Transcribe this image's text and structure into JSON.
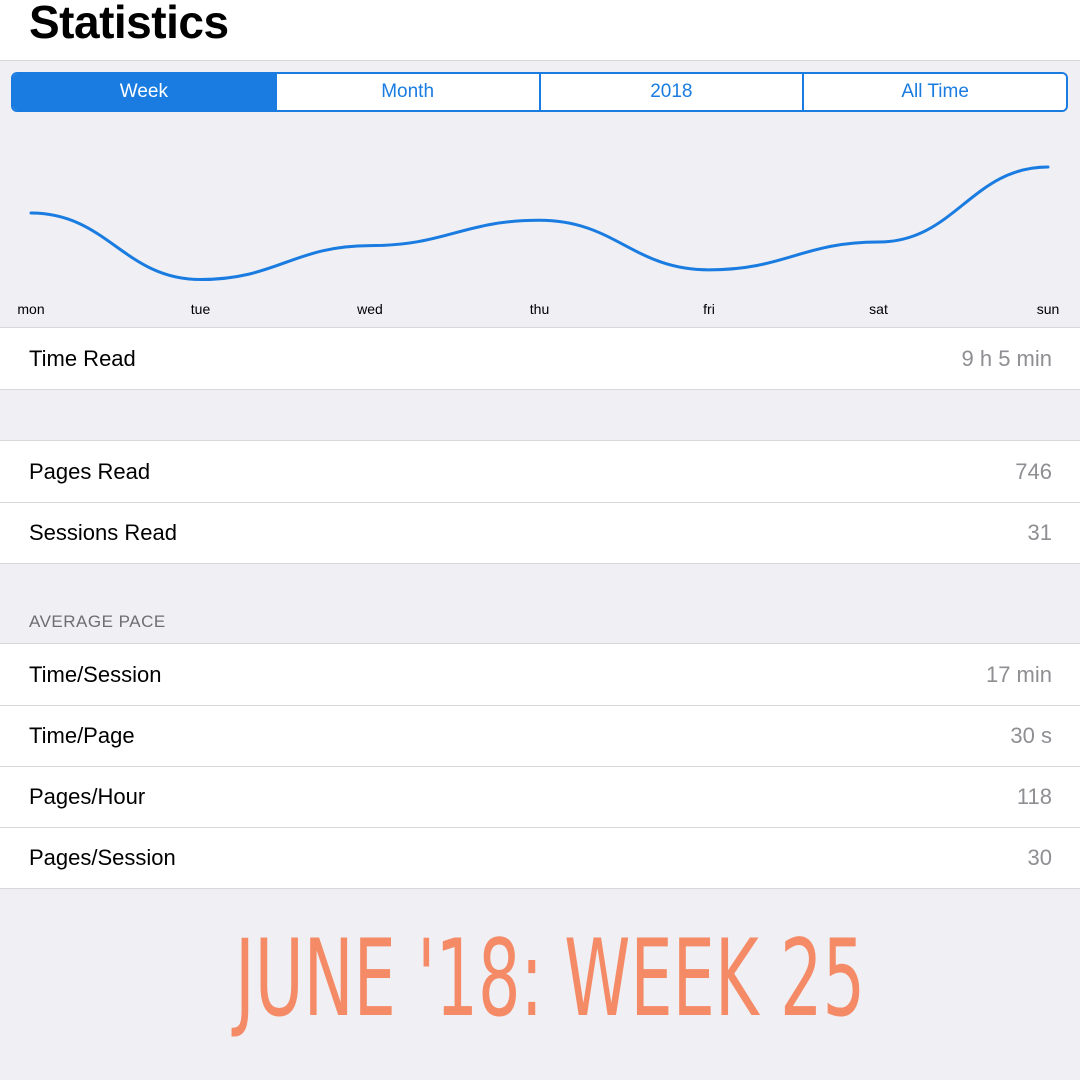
{
  "header": {
    "title": "Statistics"
  },
  "segments": [
    {
      "label": "Week",
      "active": true
    },
    {
      "label": "Month",
      "active": false
    },
    {
      "label": "2018",
      "active": false
    },
    {
      "label": "All Time",
      "active": false
    }
  ],
  "chart_data": {
    "type": "line",
    "categories": [
      "mon",
      "tue",
      "wed",
      "thu",
      "fri",
      "sat",
      "sun"
    ],
    "values": [
      0.62,
      0.07,
      0.35,
      0.56,
      0.15,
      0.38,
      1.0
    ],
    "color": "#1a7ce0",
    "title": "",
    "xlabel": "",
    "ylabel": "",
    "ylim": [
      0,
      1
    ]
  },
  "time_section": {
    "rows": [
      {
        "label": "Time Read",
        "value": "9 h 5 min"
      }
    ]
  },
  "totals_section": {
    "rows": [
      {
        "label": "Pages Read",
        "value": "746"
      },
      {
        "label": "Sessions Read",
        "value": "31"
      }
    ]
  },
  "pace_section": {
    "header": "AVERAGE PACE",
    "rows": [
      {
        "label": "Time/Session",
        "value": "17 min"
      },
      {
        "label": "Time/Page",
        "value": "30 s"
      },
      {
        "label": "Pages/Hour",
        "value": "118"
      },
      {
        "label": "Pages/Session",
        "value": "30"
      }
    ]
  },
  "caption": {
    "text": "June '18: Week 25",
    "color": "#f48a66"
  },
  "colors": {
    "accent": "#1a7ce0",
    "background": "#efeff4"
  }
}
